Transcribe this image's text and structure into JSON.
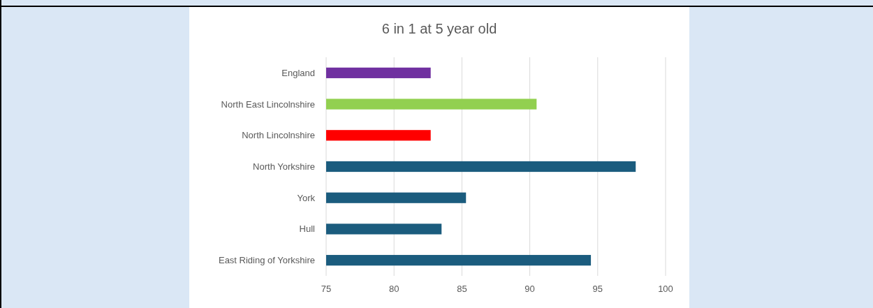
{
  "chart_data": {
    "type": "bar",
    "orientation": "horizontal",
    "title": "6 in 1 at 5 year old",
    "categories": [
      "England",
      "North East Lincolnshire",
      "North Lincolnshire",
      "North Yorkshire",
      "York",
      "Hull",
      "East Riding of Yorkshire"
    ],
    "values": [
      82.7,
      90.5,
      82.7,
      97.8,
      85.3,
      83.5,
      94.5
    ],
    "colors": [
      "#7030a0",
      "#92d050",
      "#ff0000",
      "#1b5c7e",
      "#1b5c7e",
      "#1b5c7e",
      "#1b5c7e"
    ],
    "xlim": [
      75,
      100
    ],
    "xticks": [
      75,
      80,
      85,
      90,
      95,
      100
    ],
    "grid": "x"
  }
}
